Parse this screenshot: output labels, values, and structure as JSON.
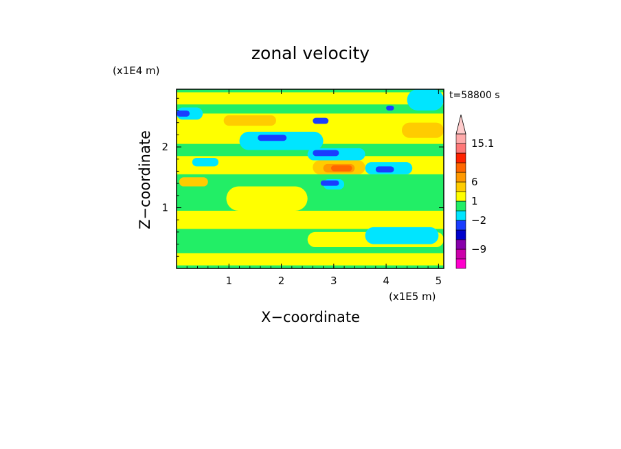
{
  "chart_data": {
    "type": "heatmap",
    "title": "zonal velocity",
    "xlabel": "X−coordinate",
    "ylabel": "Z−coordinate",
    "x_unit_label": "(x1E5 m)",
    "y_unit_label": "(x1E4 m)",
    "time_label": "t=58800 s",
    "xlim": [
      0,
      5.1
    ],
    "ylim": [
      0,
      2.95
    ],
    "x_ticks": [
      "1",
      "2",
      "3",
      "4",
      "5"
    ],
    "y_ticks": [
      "1",
      "2"
    ],
    "colorbar": {
      "labels": [
        "15.1",
        "6",
        "1",
        "−2",
        "−9"
      ],
      "levels": [
        {
          "color": "#ff00cc",
          "range": "< -12"
        },
        {
          "color": "#cc00aa",
          "range": "-12 to -9"
        },
        {
          "color": "#8800aa",
          "range": "-9 to -6"
        },
        {
          "color": "#0000cc",
          "range": "-6 to -4"
        },
        {
          "color": "#1a3cff",
          "range": "-4 to -2"
        },
        {
          "color": "#00e5ff",
          "range": "-2 to -1"
        },
        {
          "color": "#22ee66",
          "range": "-1 to 0"
        },
        {
          "color": "#ffff00",
          "range": "0 to 1"
        },
        {
          "color": "#ffcc00",
          "range": "1 to 2"
        },
        {
          "color": "#ff9900",
          "range": "2 to 3"
        },
        {
          "color": "#ff6600",
          "range": "3 to 6"
        },
        {
          "color": "#ff2200",
          "range": "6 to 9"
        },
        {
          "color": "#ff7777",
          "range": "9 to 12"
        },
        {
          "color": "#ffaaaa",
          "range": "12 to 15.1"
        },
        {
          "color": "#ffcccc",
          "range": "> 15.1"
        }
      ]
    },
    "regions": [
      {
        "color": "#22ee66",
        "x0": 0.0,
        "x1": 5.1,
        "z0": 0.0,
        "z1": 2.95
      },
      {
        "color": "#ffff00",
        "x0": 0.0,
        "x1": 5.1,
        "z0": 2.05,
        "z1": 2.55
      },
      {
        "color": "#ffff00",
        "x0": 0.0,
        "x1": 5.1,
        "z0": 1.55,
        "z1": 1.85
      },
      {
        "color": "#ffff00",
        "x0": 0.0,
        "x1": 5.1,
        "z0": 0.65,
        "z1": 0.95
      },
      {
        "color": "#ffff00",
        "x0": 0.0,
        "x1": 5.1,
        "z0": 0.05,
        "z1": 0.25
      },
      {
        "color": "#ffff00",
        "x0": 0.95,
        "x1": 2.5,
        "z0": 0.95,
        "z1": 1.35
      },
      {
        "color": "#ffff00",
        "x0": 2.5,
        "x1": 5.1,
        "z0": 0.35,
        "z1": 0.6
      },
      {
        "color": "#ffff00",
        "x0": 0.0,
        "x1": 5.1,
        "z0": 2.7,
        "z1": 2.9
      },
      {
        "color": "#ffcc00",
        "x0": 0.9,
        "x1": 1.9,
        "z0": 2.35,
        "z1": 2.52
      },
      {
        "color": "#ffcc00",
        "x0": 2.6,
        "x1": 3.6,
        "z0": 1.55,
        "z1": 1.78
      },
      {
        "color": "#ffcc00",
        "x0": 0.05,
        "x1": 0.6,
        "z0": 1.35,
        "z1": 1.5
      },
      {
        "color": "#ffcc00",
        "x0": 4.3,
        "x1": 5.1,
        "z0": 2.15,
        "z1": 2.4
      },
      {
        "color": "#ff9900",
        "x0": 2.8,
        "x1": 3.4,
        "z0": 1.58,
        "z1": 1.72
      },
      {
        "color": "#ff6600",
        "x0": 2.95,
        "x1": 3.35,
        "z0": 1.6,
        "z1": 1.7
      },
      {
        "color": "#00e5ff",
        "x0": 0.0,
        "x1": 0.5,
        "z0": 2.45,
        "z1": 2.65
      },
      {
        "color": "#00e5ff",
        "x0": 1.2,
        "x1": 2.8,
        "z0": 1.95,
        "z1": 2.25
      },
      {
        "color": "#00e5ff",
        "x0": 2.5,
        "x1": 3.6,
        "z0": 1.78,
        "z1": 1.98
      },
      {
        "color": "#00e5ff",
        "x0": 3.6,
        "x1": 4.5,
        "z0": 1.55,
        "z1": 1.75
      },
      {
        "color": "#00e5ff",
        "x0": 3.6,
        "x1": 5.0,
        "z0": 0.4,
        "z1": 0.68
      },
      {
        "color": "#00e5ff",
        "x0": 4.4,
        "x1": 5.1,
        "z0": 2.6,
        "z1": 2.95
      },
      {
        "color": "#00e5ff",
        "x0": 0.3,
        "x1": 0.8,
        "z0": 1.68,
        "z1": 1.82
      },
      {
        "color": "#00e5ff",
        "x0": 2.8,
        "x1": 3.2,
        "z0": 1.3,
        "z1": 1.47
      },
      {
        "color": "#1a3cff",
        "x0": 0.0,
        "x1": 0.25,
        "z0": 2.5,
        "z1": 2.6
      },
      {
        "color": "#1a3cff",
        "x0": 1.55,
        "x1": 2.1,
        "z0": 2.1,
        "z1": 2.2
      },
      {
        "color": "#1a3cff",
        "x0": 2.6,
        "x1": 2.9,
        "z0": 2.38,
        "z1": 2.48
      },
      {
        "color": "#1a3cff",
        "x0": 2.6,
        "x1": 3.1,
        "z0": 1.85,
        "z1": 1.95
      },
      {
        "color": "#1a3cff",
        "x0": 3.8,
        "x1": 4.15,
        "z0": 1.58,
        "z1": 1.68
      },
      {
        "color": "#1a3cff",
        "x0": 2.75,
        "x1": 3.1,
        "z0": 1.36,
        "z1": 1.45
      },
      {
        "color": "#1a3cff",
        "x0": 4.0,
        "x1": 4.15,
        "z0": 2.6,
        "z1": 2.68
      }
    ]
  }
}
